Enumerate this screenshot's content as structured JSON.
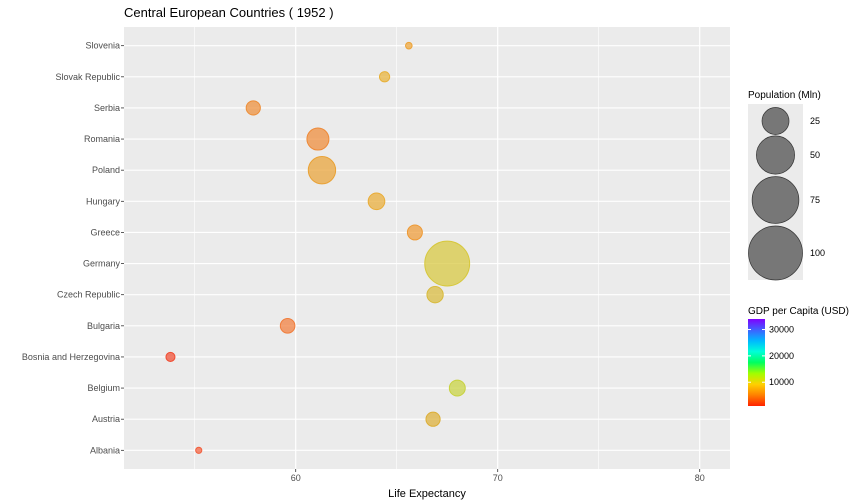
{
  "chart_data": {
    "type": "scatter",
    "title": "Central European Countries ( 1952 )",
    "xlabel": "Life Expectancy",
    "ylabel": "",
    "xlim": [
      51.5,
      81.5
    ],
    "x_ticks": [
      60,
      70,
      80
    ],
    "grid": true,
    "legend_position": "right",
    "categories": [
      "Albania",
      "Austria",
      "Belgium",
      "Bosnia and Herzegovina",
      "Bulgaria",
      "Czech Republic",
      "Germany",
      "Greece",
      "Hungary",
      "Poland",
      "Romania",
      "Serbia",
      "Slovak Republic",
      "Slovenia"
    ],
    "points": [
      {
        "country": "Albania",
        "life_expectancy": 55.2,
        "population_mln": 1.3,
        "gdp_per_capita": 1601,
        "color": "#f25e3c"
      },
      {
        "country": "Austria",
        "life_expectancy": 66.8,
        "population_mln": 6.9,
        "gdp_per_capita": 6137,
        "color": "#dcae36"
      },
      {
        "country": "Belgium",
        "life_expectancy": 68.0,
        "population_mln": 8.7,
        "gdp_per_capita": 8343,
        "color": "#c7d23f"
      },
      {
        "country": "Bosnia and Herzegovina",
        "life_expectancy": 53.8,
        "population_mln": 2.8,
        "gdp_per_capita": 974,
        "color": "#f04b30"
      },
      {
        "country": "Bulgaria",
        "life_expectancy": 59.6,
        "population_mln": 7.3,
        "gdp_per_capita": 2444,
        "color": "#f17d3b"
      },
      {
        "country": "Czech Republic",
        "life_expectancy": 66.9,
        "population_mln": 9.1,
        "gdp_per_capita": 6876,
        "color": "#d8ba3a"
      },
      {
        "country": "Germany",
        "life_expectancy": 67.5,
        "population_mln": 69.1,
        "gdp_per_capita": 7144,
        "color": "#d7c83d"
      },
      {
        "country": "Greece",
        "life_expectancy": 65.9,
        "population_mln": 7.7,
        "gdp_per_capita": 3531,
        "color": "#ee9a35"
      },
      {
        "country": "Hungary",
        "life_expectancy": 64.0,
        "population_mln": 9.5,
        "gdp_per_capita": 5264,
        "color": "#e9ac36"
      },
      {
        "country": "Poland",
        "life_expectancy": 61.3,
        "population_mln": 25.7,
        "gdp_per_capita": 4029,
        "color": "#e9a236"
      },
      {
        "country": "Romania",
        "life_expectancy": 61.1,
        "population_mln": 16.6,
        "gdp_per_capita": 3145,
        "color": "#ee8a38"
      },
      {
        "country": "Serbia",
        "life_expectancy": 57.9,
        "population_mln": 6.9,
        "gdp_per_capita": 3581,
        "color": "#ed8e38"
      },
      {
        "country": "Slovak Republic",
        "life_expectancy": 64.4,
        "population_mln": 3.6,
        "gdp_per_capita": 5074,
        "color": "#e8b138"
      },
      {
        "country": "Slovenia",
        "life_expectancy": 65.6,
        "population_mln": 1.5,
        "gdp_per_capita": 4215,
        "color": "#eda336"
      }
    ],
    "size_legend": {
      "title": "Population (Mln)",
      "values": [
        25,
        50,
        75,
        100
      ],
      "labels": [
        "25",
        "50",
        "75",
        "100"
      ]
    },
    "color_legend": {
      "title": "GDP per Capita (USD)",
      "min": 974,
      "max": 34000,
      "ticks": [
        10000,
        20000,
        30000
      ],
      "labels": [
        "10000",
        "20000",
        "30000"
      ],
      "colors": [
        "#ff2200",
        "#ff8000",
        "#ffd000",
        "#a0ff00",
        "#00ff60",
        "#00ffd8",
        "#00b8ff",
        "#4060ff",
        "#8000ff"
      ]
    },
    "styles": {
      "panel_bg": "#ebebeb",
      "grid_color": "#ffffff",
      "point_size_fill": "#777777"
    }
  }
}
